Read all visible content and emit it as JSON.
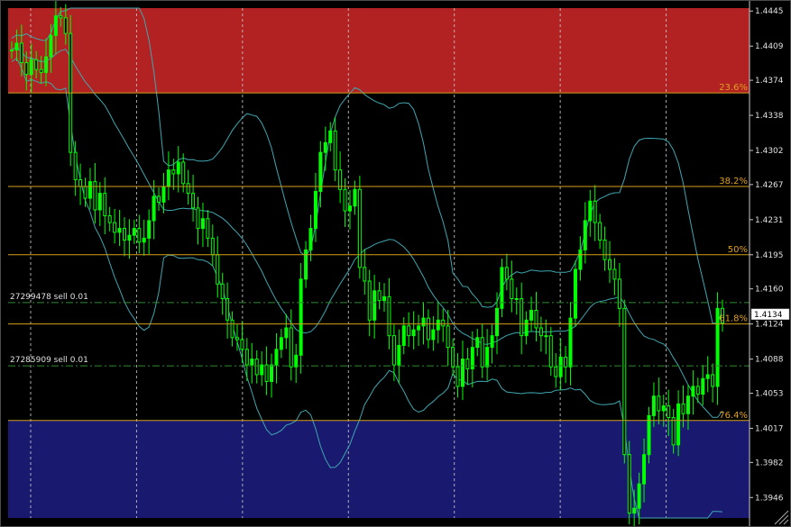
{
  "chart_data": {
    "type": "candlestick",
    "colors": {
      "background": "#000000",
      "upper_zone": "#b22222",
      "lower_zone": "#191970",
      "candle": "#00ff00",
      "bollinger": "#3fa7b0",
      "fib_line": "#d4a017",
      "order_line": "#2e8b2e",
      "grid": "#c8c8c8",
      "axis_text": "#e0e0e0",
      "current_price_box": "#ffffff"
    },
    "ylim": [
      1.3925,
      1.4448
    ],
    "price_axis": {
      "ticks": [
        {
          "label": "1.4445",
          "value": 1.4445
        },
        {
          "label": "1.4409",
          "value": 1.4409
        },
        {
          "label": "1.4374",
          "value": 1.4374
        },
        {
          "label": "1.4338",
          "value": 1.4338
        },
        {
          "label": "1.4302",
          "value": 1.4302
        },
        {
          "label": "1.4267",
          "value": 1.4267
        },
        {
          "label": "1.4231",
          "value": 1.4231
        },
        {
          "label": "1.4195",
          "value": 1.4195
        },
        {
          "label": "1.4160",
          "value": 1.416
        },
        {
          "label": "1.4124",
          "value": 1.4124
        },
        {
          "label": "1.4088",
          "value": 1.4088
        },
        {
          "label": "1.4053",
          "value": 1.4053
        },
        {
          "label": "1.4017",
          "value": 1.4017
        },
        {
          "label": "1.3982",
          "value": 1.3982
        },
        {
          "label": "1.3946",
          "value": 1.3946
        }
      ],
      "current_price_label": "1.4134",
      "current_price": 1.4134
    },
    "zones": [
      {
        "name": "upper",
        "from": 1.4361,
        "to": 1.4448
      },
      {
        "name": "lower",
        "from": 1.3925,
        "to": 1.4025
      }
    ],
    "fib_levels": [
      {
        "label": "23.6%",
        "value": 1.4361
      },
      {
        "label": "38.2%",
        "value": 1.4265
      },
      {
        "label": "50%",
        "value": 1.4195
      },
      {
        "label": "61.8%",
        "value": 1.4124
      },
      {
        "label": "76.4%",
        "value": 1.4025
      }
    ],
    "orders": [
      {
        "label": "27299478 sell 0.01",
        "price": 1.4146
      },
      {
        "label": "27285909 sell 0.01",
        "price": 1.4081
      }
    ],
    "vertical_grid_count": 7,
    "candles_close": [
      1.4405,
      1.4412,
      1.4392,
      1.438,
      1.4395,
      1.4385,
      1.4382,
      1.4398,
      1.442,
      1.444,
      1.4438,
      1.4422,
      1.43,
      1.4272,
      1.4265,
      1.4253,
      1.427,
      1.4241,
      1.4258,
      1.4235,
      1.4228,
      1.4218,
      1.4222,
      1.421,
      1.4215,
      1.4222,
      1.4208,
      1.4212,
      1.423,
      1.4255,
      1.4249,
      1.4265,
      1.4282,
      1.4278,
      1.429,
      1.4268,
      1.4258,
      1.4243,
      1.4222,
      1.4232,
      1.4212,
      1.4195,
      1.4165,
      1.415,
      1.4128,
      1.411,
      1.4108,
      1.4098,
      1.4082,
      1.4088,
      1.4072,
      1.4082,
      1.4065,
      1.4082,
      1.4098,
      1.411,
      1.412,
      1.408,
      1.4092,
      1.417,
      1.42,
      1.4222,
      1.426,
      1.43,
      1.431,
      1.4322,
      1.4282,
      1.4262,
      1.424,
      1.4245,
      1.4262,
      1.4182,
      1.4168,
      1.4128,
      1.4158,
      1.4148,
      1.4152,
      1.4112,
      1.4082,
      1.4102,
      1.4122,
      1.4112,
      1.4118,
      1.4122,
      1.413,
      1.4108,
      1.4118,
      1.4128,
      1.4122,
      1.41,
      1.408,
      1.406,
      1.4088,
      1.4078,
      1.41,
      1.411,
      1.408,
      1.41,
      1.4112,
      1.414,
      1.4182,
      1.417,
      1.415,
      1.415,
      1.4112,
      1.4128,
      1.4138,
      1.412,
      1.4112,
      1.4112,
      1.408,
      1.407,
      1.409,
      1.408,
      1.413,
      1.418,
      1.42,
      1.423,
      1.425,
      1.4228,
      1.421,
      1.419,
      1.418,
      1.417,
      1.414,
      1.399,
      1.393,
      1.3935,
      1.396,
      1.399,
      1.403,
      1.405,
      1.4035,
      1.404,
      1.4028,
      1.4,
      1.4042,
      1.4032,
      1.405,
      1.406,
      1.4052,
      1.4068,
      1.4072,
      1.406,
      1.414,
      1.4125
    ]
  }
}
